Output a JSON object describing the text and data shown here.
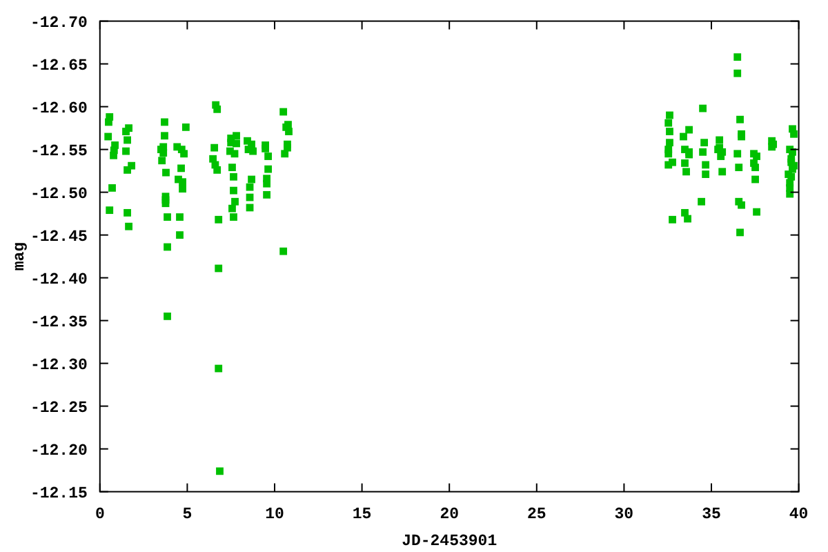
{
  "chart_data": {
    "type": "scatter",
    "xlabel": "JD-2453901",
    "ylabel": "mag",
    "xlim": [
      0,
      40
    ],
    "xticks": [
      0,
      5,
      10,
      15,
      20,
      25,
      30,
      35,
      40
    ],
    "ylim": [
      -12.15,
      -12.7
    ],
    "yticks": [
      {
        "value": -12.7,
        "label": "-12.70"
      },
      {
        "value": -12.65,
        "label": "-12.65"
      },
      {
        "value": -12.6,
        "label": "-12.60"
      },
      {
        "value": -12.55,
        "label": "-12.55"
      },
      {
        "value": -12.5,
        "label": "-12.50"
      },
      {
        "value": -12.45,
        "label": "-12.45"
      },
      {
        "value": -12.4,
        "label": "-12.40"
      },
      {
        "value": -12.35,
        "label": "-12.35"
      },
      {
        "value": -12.3,
        "label": "-12.30"
      },
      {
        "value": -12.25,
        "label": "-12.25"
      },
      {
        "value": -12.2,
        "label": "-12.20"
      },
      {
        "value": -12.15,
        "label": "-12.15"
      }
    ],
    "grid": false,
    "marker": "square",
    "series": [
      {
        "color": "#00c000",
        "x": [
          0.55,
          0.5,
          0.47,
          0.86,
          0.81,
          0.78,
          0.7,
          0.55,
          1.65,
          1.49,
          1.57,
          1.49,
          1.81,
          1.57,
          1.57,
          1.65,
          3.7,
          3.7,
          3.63,
          3.5,
          3.63,
          3.55,
          3.78,
          3.76,
          3.76,
          3.76,
          3.86,
          3.86,
          4.92,
          4.42,
          4.68,
          4.81,
          4.65,
          4.49,
          4.73,
          4.73,
          4.57,
          4.57,
          6.63,
          6.71,
          6.55,
          6.47,
          6.6,
          6.71,
          6.79,
          6.79,
          7.5,
          7.81,
          7.5,
          7.81,
          7.45,
          7.71,
          7.57,
          7.65,
          7.65,
          7.73,
          7.57,
          7.65,
          8.44,
          8.68,
          8.5,
          8.76,
          8.68,
          8.58,
          8.58,
          8.58,
          9.47,
          9.47,
          9.63,
          9.63,
          9.55,
          9.55,
          9.55,
          10.5,
          10.66,
          10.77,
          10.81,
          10.73,
          10.73,
          10.58,
          10.5,
          3.86,
          6.79,
          6.86,
          36.49,
          36.49,
          34.51,
          32.61,
          32.54,
          32.61,
          32.61,
          32.54,
          32.54,
          32.54,
          32.77,
          32.77,
          33.72,
          33.4,
          33.48,
          33.72,
          33.72,
          33.48,
          33.56,
          33.48,
          33.64,
          34.59,
          34.51,
          34.67,
          34.67,
          34.43,
          35.46,
          35.46,
          35.38,
          35.62,
          35.54,
          35.62,
          36.64,
          36.72,
          36.72,
          36.49,
          36.57,
          36.57,
          36.72,
          36.64,
          37.43,
          37.59,
          37.43,
          37.51,
          37.51,
          37.59,
          38.46,
          38.54,
          38.46,
          39.64,
          39.72,
          39.49,
          39.64,
          39.57,
          39.57,
          39.72,
          39.64,
          39.41,
          39.57,
          39.49,
          39.49,
          39.49
        ],
        "values": [
          -12.588,
          -12.582,
          -12.565,
          -12.555,
          -12.549,
          -12.543,
          -12.505,
          -12.479,
          -12.575,
          -12.571,
          -12.561,
          -12.548,
          -12.531,
          -12.526,
          -12.476,
          -12.46,
          -12.582,
          -12.566,
          -12.553,
          -12.55,
          -12.546,
          -12.537,
          -12.523,
          -12.495,
          -12.491,
          -12.487,
          -12.471,
          -12.436,
          -12.576,
          -12.553,
          -12.55,
          -12.545,
          -12.528,
          -12.515,
          -12.512,
          -12.504,
          -12.471,
          -12.45,
          -12.602,
          -12.597,
          -12.552,
          -12.539,
          -12.532,
          -12.526,
          -12.468,
          -12.411,
          -12.563,
          -12.566,
          -12.558,
          -12.557,
          -12.548,
          -12.545,
          -12.529,
          -12.518,
          -12.502,
          -12.489,
          -12.481,
          -12.471,
          -12.56,
          -12.556,
          -12.55,
          -12.548,
          -12.515,
          -12.506,
          -12.494,
          -12.482,
          -12.555,
          -12.551,
          -12.542,
          -12.527,
          -12.516,
          -12.51,
          -12.497,
          -12.594,
          -12.576,
          -12.579,
          -12.571,
          -12.556,
          -12.552,
          -12.545,
          -12.431,
          -12.355,
          -12.294,
          -12.174,
          -12.658,
          -12.639,
          -12.598,
          -12.59,
          -12.581,
          -12.571,
          -12.558,
          -12.55,
          -12.545,
          -12.532,
          -12.535,
          -12.468,
          -12.573,
          -12.565,
          -12.55,
          -12.547,
          -12.544,
          -12.534,
          -12.524,
          -12.476,
          -12.469,
          -12.558,
          -12.547,
          -12.532,
          -12.521,
          -12.489,
          -12.561,
          -12.552,
          -12.55,
          -12.547,
          -12.542,
          -12.524,
          -12.585,
          -12.568,
          -12.565,
          -12.545,
          -12.529,
          -12.489,
          -12.485,
          -12.453,
          -12.545,
          -12.542,
          -12.534,
          -12.529,
          -12.515,
          -12.477,
          -12.56,
          -12.556,
          -12.553,
          -12.574,
          -12.568,
          -12.55,
          -12.547,
          -12.539,
          -12.535,
          -12.531,
          -12.527,
          -12.521,
          -12.518,
          -12.511,
          -12.505,
          -12.498
        ]
      }
    ]
  }
}
